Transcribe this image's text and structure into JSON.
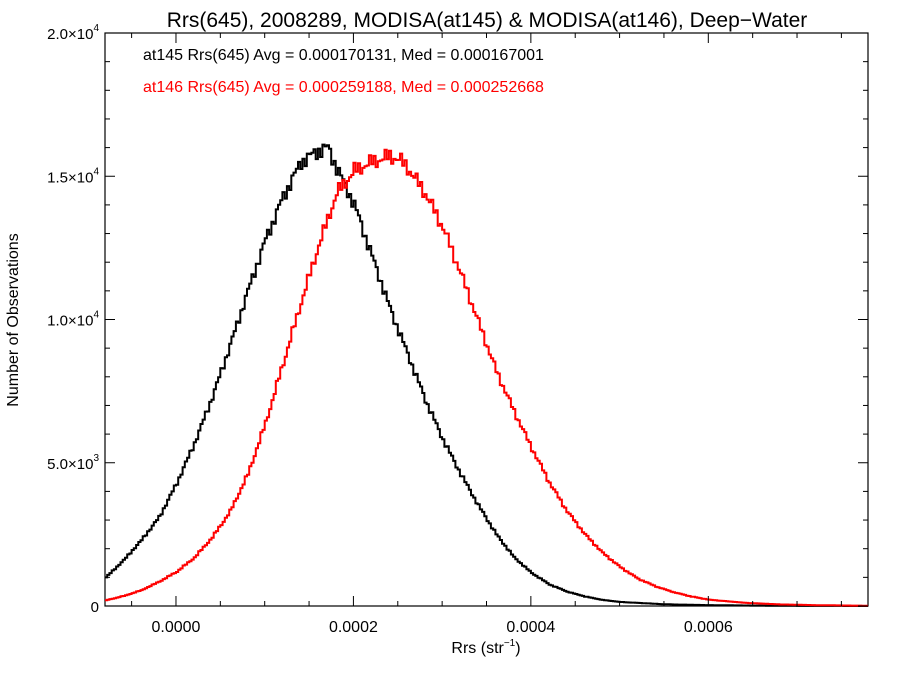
{
  "chart_data": {
    "type": "line",
    "title": "Rrs(645), 2008289, MODISA(at145) & MODISA(at146), Deep−Water",
    "xlabel": "Rrs (str",
    "xlabel_sup": "−1",
    "xlabel_end": ")",
    "ylabel": "Number of Observations",
    "xlim": [
      -8e-05,
      0.00078
    ],
    "ylim": [
      0,
      20000
    ],
    "xticks": [
      0.0,
      0.0002,
      0.0004,
      0.0006
    ],
    "xtick_labels": [
      "0.0000",
      "0.0002",
      "0.0004",
      "0.0006"
    ],
    "yticks": [
      0,
      5000,
      10000,
      15000,
      20000
    ],
    "ytick_labels": [
      {
        "mant": "0",
        "exp": ""
      },
      {
        "mant": "5.0×10",
        "exp": "3"
      },
      {
        "mant": "1.0×10",
        "exp": "4"
      },
      {
        "mant": "1.5×10",
        "exp": "4"
      },
      {
        "mant": "2.0×10",
        "exp": "4"
      }
    ],
    "grid": false,
    "annotations": [
      "at145 Rrs(645) Avg = 0.000170131, Med = 0.000167001",
      "at146 Rrs(645) Avg = 0.000259188, Med = 0.000252668"
    ],
    "series": [
      {
        "color": "#000000",
        "x": [
          -8e-05,
          -6e-05,
          -4e-05,
          -2e-05,
          0.0,
          2e-05,
          4e-05,
          6e-05,
          8e-05,
          0.0001,
          0.00012,
          0.00014,
          0.00016,
          0.00017,
          0.00018,
          0.0002,
          0.00022,
          0.00024,
          0.00026,
          0.00028,
          0.0003,
          0.00032,
          0.00034,
          0.00036,
          0.00038,
          0.0004,
          0.00042,
          0.00044,
          0.00046,
          0.00048,
          0.0005,
          0.00055,
          0.0006,
          0.00065,
          0.0007,
          0.00078
        ],
        "y": [
          1000,
          1600,
          2300,
          3100,
          4300,
          5700,
          7300,
          9100,
          11000,
          12800,
          14300,
          15500,
          15900,
          16000,
          15300,
          14000,
          12200,
          10400,
          8800,
          7200,
          5800,
          4600,
          3500,
          2500,
          1700,
          1150,
          750,
          500,
          330,
          210,
          140,
          60,
          30,
          15,
          5,
          0
        ]
      },
      {
        "color": "#ff0000",
        "x": [
          -8e-05,
          -6e-05,
          -4e-05,
          -2e-05,
          0.0,
          2e-05,
          4e-05,
          6e-05,
          8e-05,
          0.0001,
          0.00012,
          0.00014,
          0.00016,
          0.00018,
          0.0002,
          0.00022,
          0.00024,
          0.00025,
          0.00026,
          0.00028,
          0.0003,
          0.00032,
          0.00034,
          0.00036,
          0.00038,
          0.0004,
          0.00042,
          0.00044,
          0.00046,
          0.00048,
          0.0005,
          0.00052,
          0.00054,
          0.00056,
          0.00058,
          0.0006,
          0.00064,
          0.00068,
          0.00072,
          0.00076,
          0.00078
        ],
        "y": [
          200,
          350,
          550,
          850,
          1200,
          1700,
          2400,
          3300,
          4600,
          6400,
          8500,
          10600,
          12600,
          14400,
          15200,
          15500,
          15700,
          15600,
          15300,
          14400,
          13200,
          11600,
          9900,
          8200,
          6800,
          5500,
          4300,
          3300,
          2500,
          1850,
          1350,
          950,
          680,
          480,
          330,
          220,
          110,
          55,
          30,
          15,
          10
        ]
      }
    ]
  }
}
